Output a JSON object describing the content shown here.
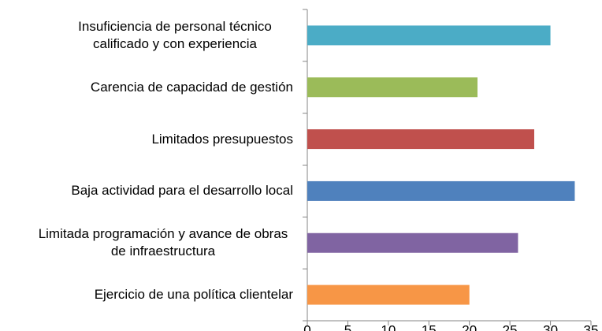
{
  "chart_data": {
    "type": "bar",
    "orientation": "horizontal",
    "categories": [
      "Insuficiencia de personal técnico calificado y con experiencia",
      "Carencia de capacidad de gestión",
      "Limitados presupuestos",
      "Baja actividad para el desarrollo local",
      "Limitada programación y avance de obras de infraestructura",
      "Ejercicio de una política clientelar"
    ],
    "values": [
      30,
      21,
      28,
      33,
      26,
      20
    ],
    "colors": [
      "#4bacc6",
      "#9bbb59",
      "#c0504d",
      "#4f81bd",
      "#8064a2",
      "#f79646"
    ],
    "xlim": [
      0,
      35
    ],
    "xticks": [
      0,
      5,
      10,
      15,
      20,
      25,
      30,
      35
    ],
    "grid": false
  }
}
